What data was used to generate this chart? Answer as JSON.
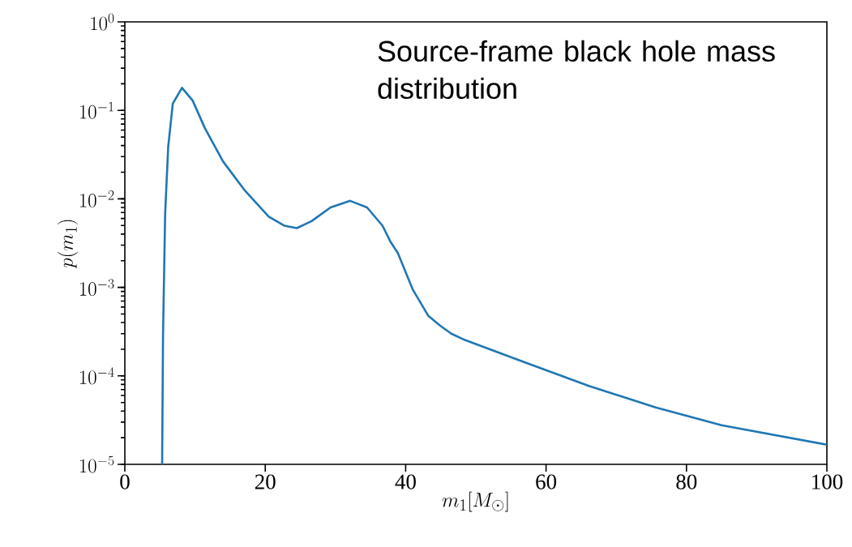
{
  "chart_data": {
    "type": "line",
    "xlabel": "m_1 [M_\\odot]",
    "ylabel": "p(m_1)",
    "annotations": [
      "Source-frame black hole mass distribution"
    ],
    "x": [
      5.31,
      5.44,
      5.74,
      6.18,
      6.83,
      8.14,
      9.66,
      11.4,
      14.0,
      17.1,
      20.5,
      22.7,
      24.5,
      26.6,
      29.3,
      32.1,
      34.5,
      36.7,
      37.8,
      38.9,
      41.0,
      43.2,
      44.9,
      46.5,
      48.2,
      56.7,
      66.1,
      75.6,
      85.0,
      100
    ],
    "series": [
      {
        "color": "#1f77b4",
        "values": [
          1e-05,
          0.000285,
          0.0068,
          0.039,
          0.119,
          0.18,
          0.129,
          0.063,
          0.0264,
          0.0124,
          0.0063,
          0.00498,
          0.00467,
          0.0056,
          0.008,
          0.0095,
          0.008,
          0.00498,
          0.00332,
          0.00243,
          0.00095,
          0.00048,
          0.00037,
          0.0003,
          0.000259,
          0.000145,
          7.7e-05,
          4.4e-05,
          2.77e-05,
          1.67e-05
        ]
      }
    ],
    "log": "y",
    "xlim": [
      0,
      100
    ],
    "ylim": [
      1e-05,
      1
    ],
    "xticks": [
      0,
      20,
      40,
      60,
      80,
      100
    ],
    "yticks": [
      {
        "value": 1e-05,
        "label": "10^{-5}"
      },
      {
        "value": 0.0001,
        "label": "10^{-4}"
      },
      {
        "value": 0.001,
        "label": "10^{-3}"
      },
      {
        "value": 0.01,
        "label": "10^{-2}"
      },
      {
        "value": 0.1,
        "label": "10^{-1}"
      },
      {
        "value": 1,
        "label": "10^{0}"
      }
    ],
    "grid": false,
    "marker": "none",
    "line_style": "solid"
  }
}
